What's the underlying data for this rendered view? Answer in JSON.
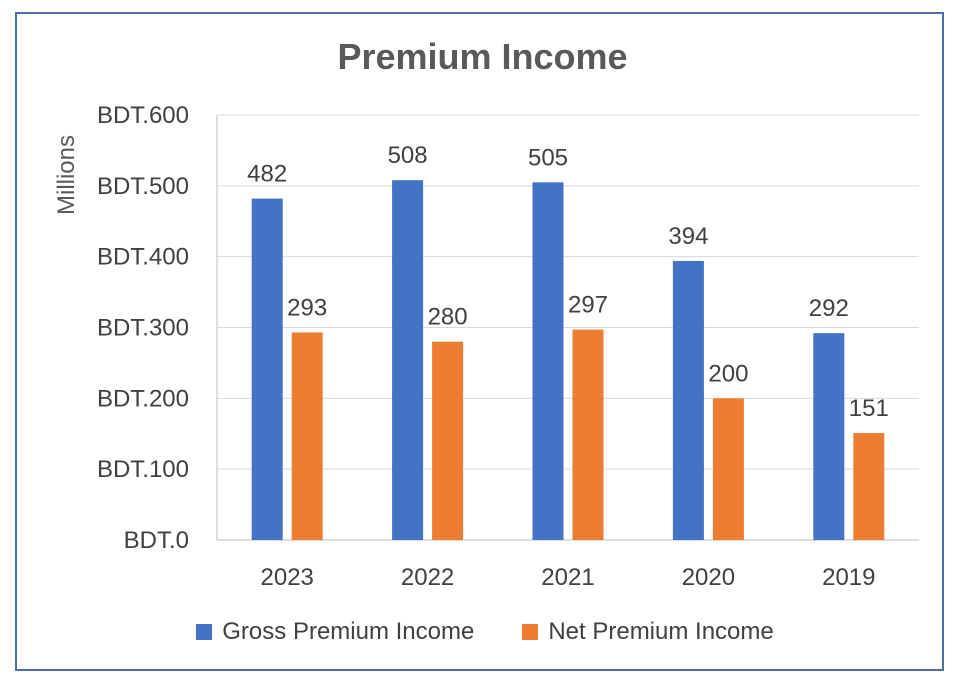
{
  "chart_data": {
    "type": "bar",
    "title": "Premium Income",
    "ylabel": "Millions",
    "ylim": [
      0,
      600
    ],
    "yticks": [
      0,
      100,
      200,
      300,
      400,
      500,
      600
    ],
    "ytick_labels": [
      "BDT.0",
      "BDT.100",
      "BDT.200",
      "BDT.300",
      "BDT.400",
      "BDT.500",
      "BDT.600"
    ],
    "categories": [
      "2023",
      "2022",
      "2021",
      "2020",
      "2019"
    ],
    "series": [
      {
        "name": "Gross Premium Income",
        "values": [
          482,
          508,
          505,
          394,
          292
        ],
        "color": "#4472c4"
      },
      {
        "name": "Net Premium Income",
        "values": [
          293,
          280,
          297,
          200,
          151
        ],
        "color": "#ed7d31"
      }
    ],
    "grid": true,
    "legend": "bottom"
  }
}
